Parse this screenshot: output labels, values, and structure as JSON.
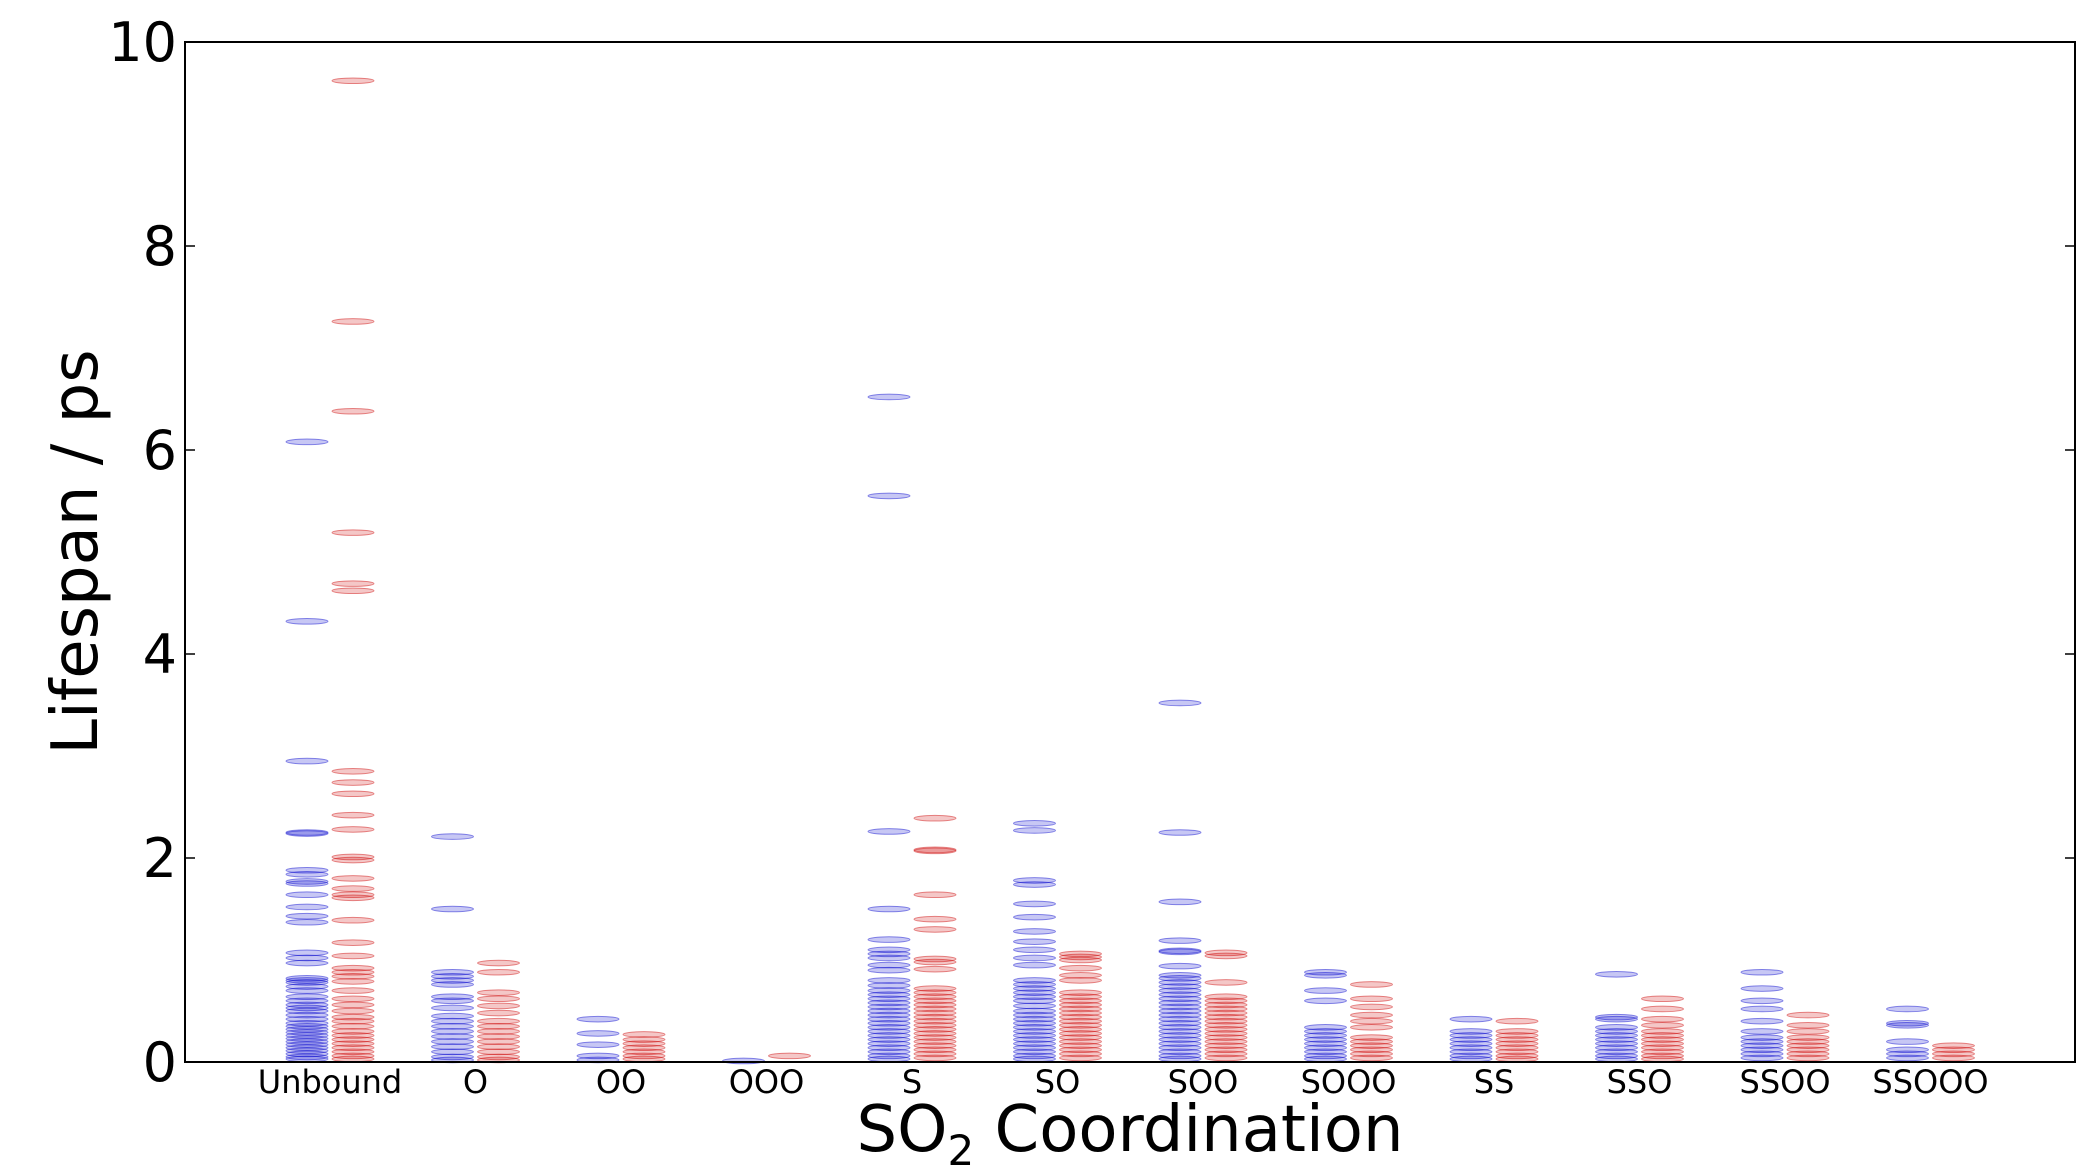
{
  "chart_data": {
    "type": "scatter",
    "xlabel": "SO",
    "xlabel_sub": "2",
    "xlabel_rest": " Coordination",
    "ylabel": "Lifespan / ps",
    "ylim": [
      0,
      10
    ],
    "yticks": [
      "0",
      "2",
      "4",
      "6",
      "8",
      "10"
    ],
    "grid": false,
    "categories": [
      "Unbound",
      "O",
      "OO",
      "OOO",
      "S",
      "SO",
      "SOO",
      "SOOO",
      "SS",
      "SSO",
      "SSOO",
      "SSOOO"
    ],
    "colors": {
      "blue": "#0000cc",
      "red": "#cc0000"
    },
    "series": [
      {
        "color": "blue",
        "values": [
          [
            6.08,
            4.32,
            2.95,
            2.25,
            2.24,
            1.88,
            1.84,
            1.77,
            1.75,
            1.64,
            1.52,
            1.43,
            1.37,
            1.07,
            1.02,
            0.97,
            0.82,
            0.8,
            0.78,
            0.74,
            0.7,
            0.64,
            0.6,
            0.56,
            0.53,
            0.5,
            0.46,
            0.42,
            0.38,
            0.35,
            0.32,
            0.29,
            0.26,
            0.23,
            0.2,
            0.17,
            0.14,
            0.11,
            0.08,
            0.05,
            0.03
          ],
          [
            2.21,
            1.5,
            0.88,
            0.84,
            0.8,
            0.76,
            0.64,
            0.6,
            0.53,
            0.45,
            0.4,
            0.35,
            0.3,
            0.25,
            0.2,
            0.15,
            0.1,
            0.05,
            0.02
          ],
          [
            0.42,
            0.28,
            0.17,
            0.06,
            0.02
          ],
          [
            0.01
          ],
          [
            6.52,
            5.55,
            2.26,
            1.5,
            1.2,
            1.1,
            1.06,
            1.02,
            0.95,
            0.9,
            0.8,
            0.75,
            0.7,
            0.66,
            0.62,
            0.58,
            0.54,
            0.5,
            0.46,
            0.42,
            0.38,
            0.34,
            0.3,
            0.26,
            0.22,
            0.18,
            0.14,
            0.1,
            0.06,
            0.03
          ],
          [
            2.34,
            2.27,
            1.78,
            1.74,
            1.55,
            1.42,
            1.28,
            1.18,
            1.1,
            1.02,
            0.95,
            0.8,
            0.76,
            0.72,
            0.68,
            0.64,
            0.6,
            0.55,
            0.5,
            0.46,
            0.42,
            0.38,
            0.34,
            0.3,
            0.26,
            0.22,
            0.18,
            0.14,
            0.1,
            0.06,
            0.03
          ],
          [
            3.52,
            2.25,
            1.57,
            1.19,
            1.09,
            1.08,
            0.94,
            0.85,
            0.82,
            0.78,
            0.74,
            0.7,
            0.66,
            0.62,
            0.58,
            0.54,
            0.5,
            0.46,
            0.42,
            0.38,
            0.34,
            0.3,
            0.26,
            0.22,
            0.18,
            0.14,
            0.1,
            0.06,
            0.03
          ],
          [
            0.88,
            0.85,
            0.7,
            0.6,
            0.34,
            0.3,
            0.26,
            0.22,
            0.18,
            0.14,
            0.1,
            0.06,
            0.03
          ],
          [
            0.42,
            0.3,
            0.26,
            0.22,
            0.18,
            0.14,
            0.1,
            0.06,
            0.03
          ],
          [
            0.86,
            0.44,
            0.42,
            0.34,
            0.3,
            0.26,
            0.22,
            0.18,
            0.14,
            0.1,
            0.06,
            0.03
          ],
          [
            0.88,
            0.72,
            0.6,
            0.52,
            0.4,
            0.3,
            0.24,
            0.2,
            0.16,
            0.12,
            0.08,
            0.04
          ],
          [
            0.52,
            0.38,
            0.36,
            0.2,
            0.12,
            0.08,
            0.04
          ]
        ]
      },
      {
        "color": "red",
        "values": [
          [
            9.62,
            7.26,
            6.38,
            5.19,
            4.69,
            4.62,
            2.85,
            2.74,
            2.63,
            2.42,
            2.28,
            2.01,
            1.98,
            1.8,
            1.7,
            1.64,
            1.61,
            1.39,
            1.17,
            1.04,
            0.92,
            0.88,
            0.84,
            0.79,
            0.7,
            0.62,
            0.56,
            0.5,
            0.44,
            0.4,
            0.35,
            0.3,
            0.26,
            0.22,
            0.18,
            0.14,
            0.1,
            0.06,
            0.03
          ],
          [
            0.97,
            0.88,
            0.68,
            0.62,
            0.55,
            0.48,
            0.4,
            0.35,
            0.3,
            0.25,
            0.2,
            0.15,
            0.1,
            0.05,
            0.02
          ],
          [
            0.27,
            0.22,
            0.18,
            0.14,
            0.1,
            0.06,
            0.03
          ],
          [
            0.06
          ],
          [
            2.39,
            2.08,
            2.07,
            1.64,
            1.4,
            1.3,
            1.01,
            0.98,
            0.91,
            0.72,
            0.68,
            0.64,
            0.6,
            0.56,
            0.52,
            0.48,
            0.44,
            0.4,
            0.36,
            0.32,
            0.28,
            0.24,
            0.2,
            0.16,
            0.12,
            0.08,
            0.04
          ],
          [
            1.06,
            1.03,
            1.0,
            0.92,
            0.85,
            0.8,
            0.68,
            0.64,
            0.6,
            0.56,
            0.52,
            0.48,
            0.44,
            0.4,
            0.36,
            0.32,
            0.28,
            0.24,
            0.2,
            0.16,
            0.12,
            0.08,
            0.04
          ],
          [
            1.07,
            1.04,
            0.78,
            0.64,
            0.6,
            0.56,
            0.52,
            0.48,
            0.44,
            0.4,
            0.36,
            0.32,
            0.28,
            0.24,
            0.2,
            0.16,
            0.12,
            0.08,
            0.04
          ],
          [
            0.76,
            0.62,
            0.54,
            0.46,
            0.4,
            0.34,
            0.24,
            0.2,
            0.16,
            0.12,
            0.08,
            0.04
          ],
          [
            0.4,
            0.3,
            0.26,
            0.22,
            0.18,
            0.14,
            0.1,
            0.06,
            0.03
          ],
          [
            0.62,
            0.52,
            0.42,
            0.36,
            0.3,
            0.26,
            0.22,
            0.18,
            0.14,
            0.1,
            0.06,
            0.03
          ],
          [
            0.46,
            0.36,
            0.3,
            0.24,
            0.2,
            0.16,
            0.12,
            0.08,
            0.04
          ],
          [
            0.16,
            0.12,
            0.08,
            0.04
          ]
        ]
      }
    ]
  }
}
